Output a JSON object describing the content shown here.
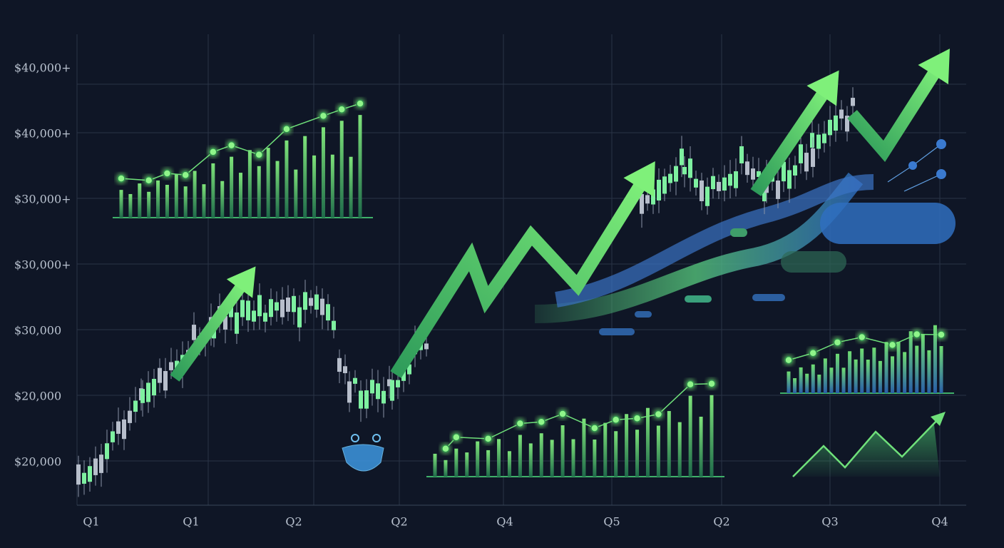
{
  "y_axis_labels": [
    "$40,000+",
    "$40,000+",
    "$30,000+",
    "$30,000+",
    "$30,000",
    "$20,000",
    "$20,000"
  ],
  "x_axis_labels": [
    "Q1",
    "Q1",
    "Q2",
    "Q2",
    "Q4",
    "Q5",
    "Q2",
    "Q3",
    "Q4"
  ]
}
